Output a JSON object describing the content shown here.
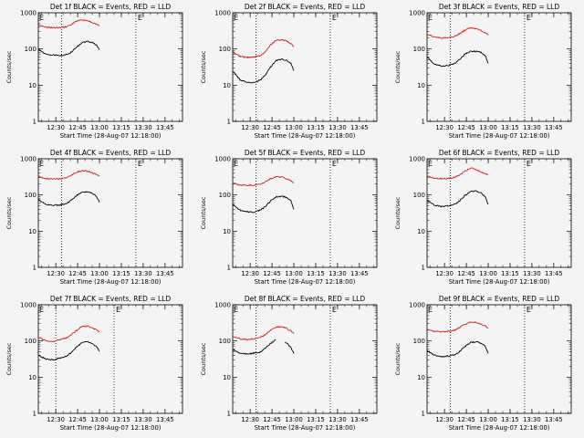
{
  "chart_data": [
    {
      "type": "line",
      "title": "Det 1f BLACK = Events, RED = LLD",
      "xlabel": "Start Time (28-Aug-07 12:18:00)",
      "ylabel": "Counts/sec",
      "xticks": [
        "12:30",
        "12:45",
        "13:00",
        "13:15",
        "13:30",
        "13:45"
      ],
      "yticks": [
        "1",
        "10",
        "100",
        "1000"
      ],
      "ylim": [
        1,
        1000
      ],
      "xlim": [
        "12:18",
        "13:57"
      ],
      "yscale": "log",
      "vlines": [
        "12:34",
        "13:25"
      ],
      "markers": [
        "E",
        "E"
      ],
      "series": [
        {
          "color": "#000000",
          "x": [
            "12:18",
            "12:23",
            "12:28",
            "12:33",
            "12:37",
            "12:40",
            "12:44",
            "12:48",
            "12:52",
            "12:55",
            "12:58",
            "13:00"
          ],
          "values": [
            100,
            72,
            68,
            67,
            70,
            78,
            110,
            150,
            160,
            150,
            130,
            95
          ]
        },
        {
          "color": "#d42020",
          "x": [
            "12:18",
            "12:23",
            "12:28",
            "12:33",
            "12:37",
            "12:40",
            "12:44",
            "12:48",
            "12:52",
            "12:55",
            "12:58",
            "13:00"
          ],
          "values": [
            460,
            400,
            385,
            390,
            410,
            460,
            580,
            640,
            600,
            540,
            480,
            430
          ]
        }
      ]
    },
    {
      "type": "line",
      "title": "Det 2f BLACK = Events, RED = LLD",
      "xlabel": "Start Time (28-Aug-07 12:18:00)",
      "ylabel": "Counts/sec",
      "xticks": [
        "12:30",
        "12:45",
        "13:00",
        "13:15",
        "13:30",
        "13:45"
      ],
      "yticks": [
        "1",
        "10",
        "100",
        "1000"
      ],
      "ylim": [
        1,
        1000
      ],
      "xlim": [
        "12:18",
        "13:57"
      ],
      "yscale": "log",
      "vlines": [
        "12:34",
        "13:25"
      ],
      "markers": [
        "E",
        "E"
      ],
      "series": [
        {
          "color": "#000000",
          "x": [
            "12:18",
            "12:23",
            "12:28",
            "12:33",
            "12:37",
            "12:40",
            "12:44",
            "12:48",
            "12:52",
            "12:55",
            "12:58",
            "13:00"
          ],
          "values": [
            25,
            14,
            12,
            12,
            14,
            18,
            32,
            48,
            52,
            48,
            40,
            25
          ]
        },
        {
          "color": "#d42020",
          "x": [
            "12:18",
            "12:23",
            "12:28",
            "12:33",
            "12:37",
            "12:40",
            "12:44",
            "12:48",
            "12:52",
            "12:55",
            "12:58",
            "13:00"
          ],
          "values": [
            85,
            62,
            58,
            60,
            66,
            80,
            130,
            175,
            180,
            165,
            140,
            115
          ]
        }
      ]
    },
    {
      "type": "line",
      "title": "Det 3f BLACK = Events, RED = LLD",
      "xlabel": "Start Time (28-Aug-07 12:18:00)",
      "ylabel": "Counts/sec",
      "xticks": [
        "12:30",
        "12:45",
        "13:00",
        "13:15",
        "13:30",
        "13:45"
      ],
      "yticks": [
        "1",
        "10",
        "100",
        "1000"
      ],
      "ylim": [
        1,
        1000
      ],
      "xlim": [
        "12:18",
        "13:57"
      ],
      "yscale": "log",
      "vlines": [
        "12:34",
        "13:25"
      ],
      "markers": [
        "E",
        "E"
      ],
      "series": [
        {
          "color": "#000000",
          "x": [
            "12:18",
            "12:23",
            "12:28",
            "12:33",
            "12:37",
            "12:40",
            "12:44",
            "12:48",
            "12:52",
            "12:55",
            "12:58",
            "13:00"
          ],
          "values": [
            60,
            38,
            34,
            35,
            40,
            50,
            72,
            88,
            86,
            80,
            65,
            40
          ]
        },
        {
          "color": "#d42020",
          "x": [
            "12:18",
            "12:23",
            "12:28",
            "12:33",
            "12:37",
            "12:40",
            "12:44",
            "12:48",
            "12:52",
            "12:55",
            "12:58",
            "13:00"
          ],
          "values": [
            260,
            215,
            200,
            205,
            225,
            260,
            330,
            380,
            360,
            320,
            280,
            240
          ]
        }
      ]
    },
    {
      "type": "line",
      "title": "Det 4f BLACK = Events, RED = LLD",
      "xlabel": "Start Time (28-Aug-07 12:18:00)",
      "ylabel": "Counts/sec",
      "xticks": [
        "12:30",
        "12:45",
        "13:00",
        "13:15",
        "13:30",
        "13:45"
      ],
      "yticks": [
        "1",
        "10",
        "100",
        "1000"
      ],
      "ylim": [
        1,
        1000
      ],
      "xlim": [
        "12:18",
        "13:57"
      ],
      "yscale": "log",
      "vlines": [
        "12:34",
        "13:25"
      ],
      "markers": [
        "E",
        "E"
      ],
      "series": [
        {
          "color": "#000000",
          "x": [
            "12:18",
            "12:23",
            "12:28",
            "12:33",
            "12:37",
            "12:40",
            "12:44",
            "12:48",
            "12:52",
            "12:55",
            "12:58",
            "13:00"
          ],
          "values": [
            75,
            55,
            52,
            53,
            58,
            68,
            95,
            120,
            122,
            110,
            90,
            62
          ]
        },
        {
          "color": "#d42020",
          "x": [
            "12:18",
            "12:23",
            "12:28",
            "12:33",
            "12:37",
            "12:40",
            "12:44",
            "12:48",
            "12:52",
            "12:55",
            "12:58",
            "13:00"
          ],
          "values": [
            330,
            285,
            275,
            280,
            300,
            340,
            420,
            470,
            450,
            410,
            370,
            330
          ]
        }
      ]
    },
    {
      "type": "line",
      "title": "Det 5f BLACK = Events, RED = LLD",
      "xlabel": "Start Time (28-Aug-07 12:18:00)",
      "ylabel": "Counts/sec",
      "xticks": [
        "12:30",
        "12:45",
        "13:00",
        "13:15",
        "13:30",
        "13:45"
      ],
      "yticks": [
        "1",
        "10",
        "100",
        "1000"
      ],
      "ylim": [
        1,
        1000
      ],
      "xlim": [
        "12:18",
        "13:57"
      ],
      "yscale": "log",
      "vlines": [
        "12:34",
        "13:25"
      ],
      "markers": [
        "E",
        "E"
      ],
      "series": [
        {
          "color": "#000000",
          "x": [
            "12:18",
            "12:23",
            "12:28",
            "12:33",
            "12:37",
            "12:40",
            "12:44",
            "12:48",
            "12:52",
            "12:55",
            "12:58",
            "13:00"
          ],
          "values": [
            55,
            38,
            34,
            34,
            38,
            46,
            68,
            90,
            92,
            85,
            70,
            40
          ]
        },
        {
          "color": "#d42020",
          "x": [
            "12:18",
            "12:23",
            "12:28",
            "12:33",
            "12:37",
            "12:40",
            "12:44",
            "12:48",
            "12:52",
            "12:55",
            "12:58",
            "13:00"
          ],
          "values": [
            210,
            190,
            185,
            188,
            200,
            225,
            280,
            320,
            310,
            280,
            250,
            215
          ]
        }
      ]
    },
    {
      "type": "line",
      "title": "Det 6f BLACK = Events, RED = LLD",
      "xlabel": "Start Time (28-Aug-07 12:18:00)",
      "ylabel": "Counts/sec",
      "xticks": [
        "12:30",
        "12:45",
        "13:00",
        "13:15",
        "13:30",
        "13:45"
      ],
      "yticks": [
        "1",
        "10",
        "100",
        "1000"
      ],
      "ylim": [
        1,
        1000
      ],
      "xlim": [
        "12:18",
        "13:57"
      ],
      "yscale": "log",
      "vlines": [
        "12:34",
        "13:25"
      ],
      "markers": [
        "E",
        "E"
      ],
      "series": [
        {
          "color": "#000000",
          "x": [
            "12:18",
            "12:23",
            "12:28",
            "12:33",
            "12:37",
            "12:40",
            "12:44",
            "12:48",
            "12:52",
            "12:55",
            "12:58",
            "13:00"
          ],
          "values": [
            72,
            52,
            48,
            50,
            56,
            66,
            95,
            125,
            128,
            115,
            90,
            55
          ]
        },
        {
          "color": "#d42020",
          "x": [
            "12:18",
            "12:23",
            "12:28",
            "12:33",
            "12:37",
            "12:40",
            "12:44",
            "12:48",
            "12:52",
            "12:55",
            "12:58",
            "13:00"
          ],
          "values": [
            330,
            290,
            280,
            285,
            305,
            350,
            450,
            560,
            500,
            430,
            380,
            360
          ]
        }
      ]
    },
    {
      "type": "line",
      "title": "Det 7f BLACK = Events, RED = LLD",
      "xlabel": "Start Time (28-Aug-07 12:18:00)",
      "ylabel": "Counts/sec",
      "xticks": [
        "12:30",
        "12:45",
        "13:00",
        "13:15",
        "13:30",
        "13:45"
      ],
      "yticks": [
        "1",
        "10",
        "100",
        "1000"
      ],
      "ylim": [
        1,
        1000
      ],
      "xlim": [
        "12:18",
        "13:57"
      ],
      "yscale": "log",
      "vlines": [
        "12:30",
        "13:10"
      ],
      "markers": [
        "E",
        "E"
      ],
      "series": [
        {
          "color": "#000000",
          "x": [
            "12:18",
            "12:23",
            "12:28",
            "12:33",
            "12:37",
            "12:40",
            "12:44",
            "12:48",
            "12:52",
            "12:55",
            "12:58",
            "13:00"
          ],
          "values": [
            40,
            32,
            30,
            34,
            38,
            46,
            65,
            90,
            95,
            85,
            70,
            52
          ]
        },
        {
          "color": "#d42020",
          "x": [
            "12:18",
            "12:23",
            "12:28",
            "12:33",
            "12:37",
            "12:40",
            "12:44",
            "12:48",
            "12:52",
            "12:55",
            "12:58",
            "13:00"
          ],
          "values": [
            130,
            100,
            95,
            110,
            120,
            140,
            190,
            250,
            260,
            230,
            200,
            175
          ]
        }
      ]
    },
    {
      "type": "line",
      "title": "Det 8f BLACK = Events, RED = LLD",
      "xlabel": "Start Time (28-Aug-07 12:18:00)",
      "ylabel": "Counts/sec",
      "xticks": [
        "12:30",
        "12:45",
        "13:00",
        "13:15",
        "13:30",
        "13:45"
      ],
      "yticks": [
        "1",
        "10",
        "100",
        "1000"
      ],
      "ylim": [
        1,
        1000
      ],
      "xlim": [
        "12:18",
        "13:57"
      ],
      "yscale": "log",
      "vlines": [
        "12:34",
        "13:25"
      ],
      "markers": [
        "E",
        "E"
      ],
      "series": [
        {
          "color": "#000000",
          "x": [
            "12:18",
            "12:23",
            "12:28",
            "12:33",
            "12:37",
            "12:40",
            "12:44",
            "12:48",
            "12:50",
            "12:54",
            "12:56",
            "12:58",
            "13:00"
          ],
          "values": [
            58,
            45,
            44,
            46,
            50,
            62,
            85,
            110,
            null,
            95,
            80,
            65,
            45
          ]
        },
        {
          "color": "#d42020",
          "x": [
            "12:18",
            "12:23",
            "12:28",
            "12:33",
            "12:37",
            "12:40",
            "12:44",
            "12:48",
            "12:52",
            "12:55",
            "12:58",
            "13:00"
          ],
          "values": [
            135,
            115,
            110,
            115,
            125,
            145,
            195,
            240,
            250,
            220,
            190,
            160
          ]
        }
      ]
    },
    {
      "type": "line",
      "title": "Det 9f BLACK = Events, RED = LLD",
      "xlabel": "Start Time (28-Aug-07 12:18:00)",
      "ylabel": "Counts/sec",
      "xticks": [
        "12:30",
        "12:45",
        "13:00",
        "13:15",
        "13:30",
        "13:45"
      ],
      "yticks": [
        "1",
        "10",
        "100",
        "1000"
      ],
      "ylim": [
        1,
        1000
      ],
      "xlim": [
        "12:18",
        "13:57"
      ],
      "yscale": "log",
      "vlines": [
        "12:34",
        "13:25"
      ],
      "markers": [
        "E",
        "E"
      ],
      "series": [
        {
          "color": "#000000",
          "x": [
            "12:18",
            "12:23",
            "12:28",
            "12:33",
            "12:37",
            "12:40",
            "12:44",
            "12:48",
            "12:52",
            "12:55",
            "12:58",
            "13:00"
          ],
          "values": [
            55,
            40,
            37,
            38,
            42,
            50,
            70,
            92,
            95,
            88,
            70,
            45
          ]
        },
        {
          "color": "#d42020",
          "x": [
            "12:18",
            "12:23",
            "12:28",
            "12:33",
            "12:37",
            "12:40",
            "12:44",
            "12:48",
            "12:52",
            "12:55",
            "12:58",
            "13:00"
          ],
          "values": [
            210,
            185,
            180,
            185,
            200,
            230,
            290,
            330,
            320,
            290,
            260,
            220
          ]
        }
      ]
    }
  ]
}
